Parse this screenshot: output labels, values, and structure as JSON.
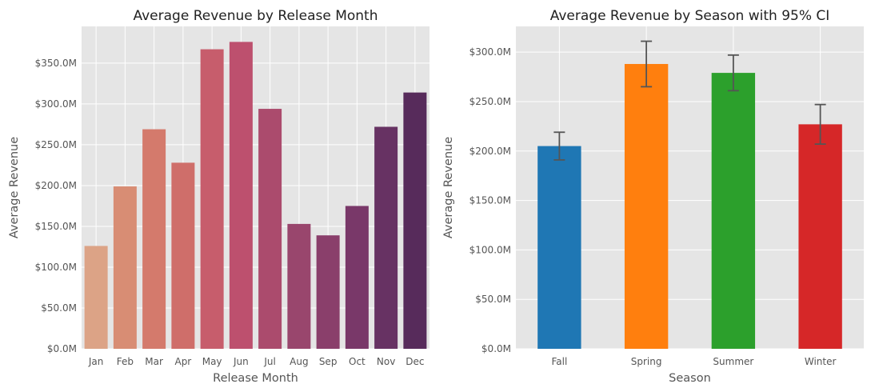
{
  "chart_data": [
    {
      "type": "bar",
      "title": "Average Revenue by Release Month",
      "xlabel": "Release Month",
      "ylabel": "Average Revenue",
      "categories": [
        "Jan",
        "Feb",
        "Mar",
        "Apr",
        "May",
        "Jun",
        "Jul",
        "Aug",
        "Sep",
        "Oct",
        "Nov",
        "Dec"
      ],
      "values": [
        126,
        199,
        269,
        228,
        367,
        376,
        294,
        153,
        139,
        175,
        272,
        314
      ],
      "value_unit": "$M",
      "ylim": [
        0,
        395
      ],
      "yticks": [
        0,
        50,
        100,
        150,
        200,
        250,
        300,
        350
      ],
      "ytick_labels": [
        "$0.0M",
        "$50.0M",
        "$100.0M",
        "$150.0M",
        "$200.0M",
        "$250.0M",
        "$300.0M",
        "$350.0M"
      ],
      "colors": [
        "#dca386",
        "#d88d74",
        "#d47a6c",
        "#cf6e6a",
        "#c75d6c",
        "#bd506e",
        "#ab4b6d",
        "#99466d",
        "#8a3f6b",
        "#793869",
        "#673263",
        "#572b5b"
      ],
      "grid": true
    },
    {
      "type": "bar",
      "title": "Average Revenue by Season with 95% CI",
      "xlabel": "Season",
      "ylabel": "Average Revenue",
      "categories": [
        "Fall",
        "Spring",
        "Summer",
        "Winter"
      ],
      "values": [
        205,
        288,
        279,
        227
      ],
      "ci_low": [
        191,
        265,
        261,
        207
      ],
      "ci_high": [
        219,
        311,
        297,
        247
      ],
      "value_unit": "$M",
      "ylim": [
        0,
        326
      ],
      "yticks": [
        0,
        50,
        100,
        150,
        200,
        250,
        300
      ],
      "ytick_labels": [
        "$0.0M",
        "$50.0M",
        "$100.0M",
        "$150.0M",
        "$200.0M",
        "$250.0M",
        "$300.0M"
      ],
      "colors": [
        "#1f77b4",
        "#ff7f0e",
        "#2ca02c",
        "#d62728"
      ],
      "grid": true
    }
  ]
}
